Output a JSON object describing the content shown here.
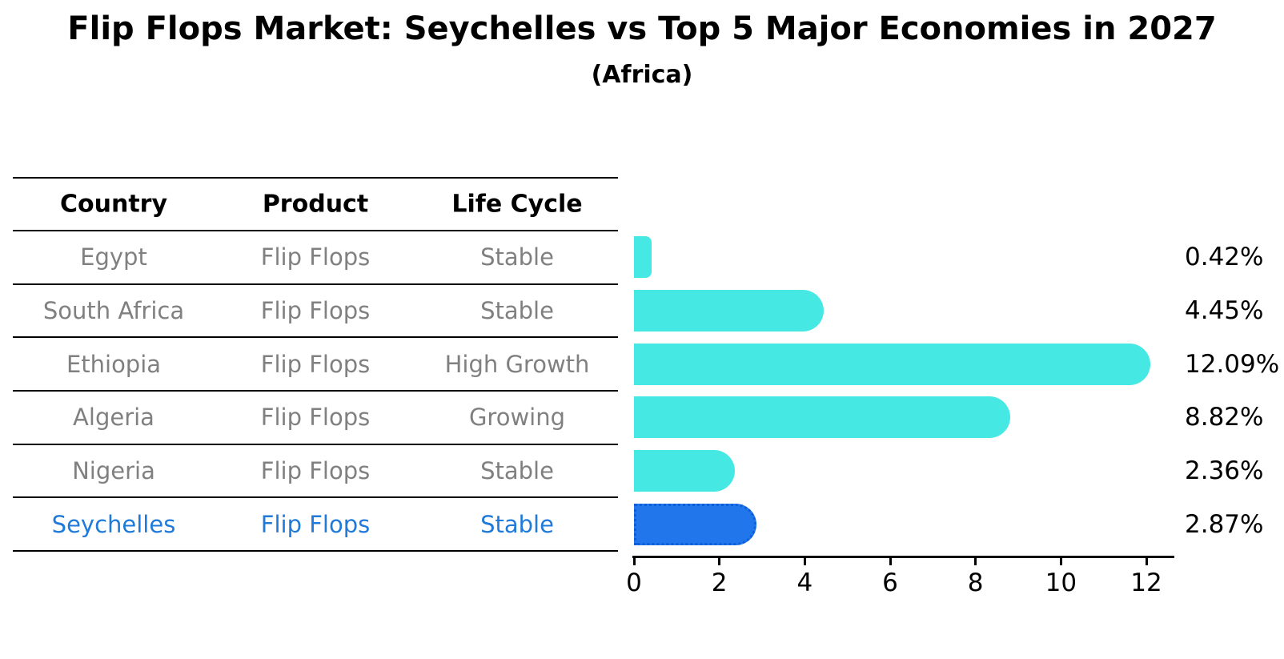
{
  "title": "Flip Flops Market: Seychelles vs Top 5 Major Economies in 2027",
  "subtitle": "(Africa)",
  "table": {
    "headers": [
      "Country",
      "Product",
      "Life Cycle"
    ],
    "rows": [
      {
        "country": "Egypt",
        "product": "Flip Flops",
        "life_cycle": "Stable",
        "highlight": false
      },
      {
        "country": "South Africa",
        "product": "Flip Flops",
        "life_cycle": "Stable",
        "highlight": false
      },
      {
        "country": "Ethiopia",
        "product": "Flip Flops",
        "life_cycle": "High Growth",
        "highlight": false
      },
      {
        "country": "Algeria",
        "product": "Flip Flops",
        "life_cycle": "Growing",
        "highlight": false
      },
      {
        "country": "Nigeria",
        "product": "Flip Flops",
        "life_cycle": "Stable",
        "highlight": true
      }
    ],
    "highlight_row": {
      "country": "Seychelles",
      "product": "Flip Flops",
      "life_cycle": "Stable"
    }
  },
  "chart_data": {
    "type": "bar",
    "orientation": "horizontal",
    "title": "Flip Flops Market: Seychelles vs Top 5 Major Economies in 2027",
    "subtitle": "(Africa)",
    "categories": [
      "Egypt",
      "South Africa",
      "Ethiopia",
      "Algeria",
      "Nigeria",
      "Seychelles"
    ],
    "values": [
      0.42,
      4.45,
      12.09,
      8.82,
      2.36,
      2.87
    ],
    "value_labels": [
      "0.42%",
      "4.45%",
      "12.09%",
      "8.82%",
      "2.36%",
      "2.87%"
    ],
    "x_ticks": [
      0,
      2,
      4,
      6,
      8,
      10,
      12
    ],
    "xlim": [
      0,
      12.66
    ],
    "grid": false,
    "legend": "none",
    "bar_color": "#46e8e3",
    "highlight_index": 5,
    "highlight_color": "#2176ec",
    "highlight_border_color": "#0d5ed8",
    "highlight_border_style": "dotted",
    "text_color": "#000000",
    "muted_text_color": "#808080",
    "highlight_text_color": "#1f7ad9"
  }
}
